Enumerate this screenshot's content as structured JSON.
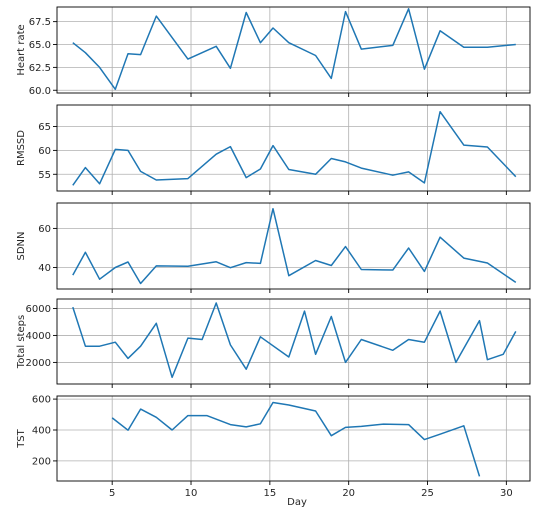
{
  "chart_data": {
    "type": "line",
    "xlabel": "Day",
    "xlim": [
      1.5,
      31.5
    ],
    "xticks": [
      5,
      10,
      15,
      20,
      25,
      30
    ],
    "line_color": "#1f77b4",
    "grid": true,
    "charts": [
      {
        "ylabel": "Heart rate",
        "ylim": [
          59.7,
          69.1
        ],
        "yticks": [
          60.0,
          62.5,
          65.0,
          67.5
        ],
        "ytick_labels": [
          "60.0",
          "62.5",
          "65.0",
          "67.5"
        ],
        "x": [
          2.5,
          3.3,
          4.2,
          5.2,
          6.0,
          6.8,
          7.8,
          9.8,
          11.6,
          12.5,
          13.5,
          14.4,
          15.2,
          16.2,
          17.9,
          18.9,
          19.8,
          20.8,
          22.8,
          23.8,
          24.8,
          25.8,
          27.3,
          28.8,
          30.6
        ],
        "values": [
          65.2,
          64.1,
          62.5,
          60.1,
          64.0,
          63.9,
          68.1,
          63.4,
          64.8,
          62.4,
          68.5,
          65.2,
          66.8,
          65.2,
          63.8,
          61.3,
          68.6,
          64.5,
          64.9,
          68.9,
          62.3,
          66.5,
          64.7,
          64.7,
          65.0
        ]
      },
      {
        "ylabel": "RMSSD",
        "ylim": [
          51.5,
          69.5
        ],
        "yticks": [
          55,
          60,
          65
        ],
        "ytick_labels": [
          "55",
          "60",
          "65"
        ],
        "x": [
          2.5,
          3.3,
          4.2,
          5.2,
          6.0,
          6.8,
          7.8,
          9.8,
          11.6,
          12.5,
          13.5,
          14.4,
          15.2,
          16.2,
          17.9,
          18.9,
          19.8,
          20.8,
          22.8,
          23.8,
          24.8,
          25.8,
          27.3,
          28.8,
          30.6
        ],
        "values": [
          52.7,
          56.4,
          53.0,
          60.2,
          60.0,
          55.6,
          53.8,
          54.1,
          59.2,
          60.8,
          54.3,
          56.1,
          61.0,
          56.0,
          55.0,
          58.3,
          57.6,
          56.3,
          54.8,
          55.5,
          53.2,
          68.1,
          61.1,
          60.7,
          54.5
        ]
      },
      {
        "ylabel": "SDNN",
        "ylim": [
          29,
          73
        ],
        "yticks": [
          40,
          60
        ],
        "ytick_labels": [
          "40",
          "60"
        ],
        "x": [
          2.5,
          3.3,
          4.2,
          5.2,
          6.0,
          6.8,
          7.8,
          9.8,
          11.6,
          12.5,
          13.5,
          14.4,
          15.2,
          16.2,
          17.9,
          18.9,
          19.8,
          20.8,
          22.8,
          23.8,
          24.8,
          25.8,
          27.3,
          28.8,
          30.6
        ],
        "values": [
          36.1,
          47.8,
          34.0,
          40.0,
          42.8,
          31.8,
          40.8,
          40.6,
          42.9,
          39.9,
          42.5,
          42.1,
          70.1,
          35.8,
          43.6,
          41.0,
          50.7,
          39.0,
          38.7,
          50.0,
          38.0,
          55.5,
          44.8,
          42.3,
          32.4
        ]
      },
      {
        "ylabel": "Total steps",
        "ylim": [
          400,
          6700
        ],
        "yticks": [
          2000,
          4000,
          6000
        ],
        "ytick_labels": [
          "2000",
          "4000",
          "6000"
        ],
        "x": [
          2.5,
          3.3,
          4.2,
          5.2,
          6.0,
          6.8,
          7.8,
          8.8,
          9.8,
          10.7,
          11.6,
          12.5,
          13.5,
          14.4,
          16.2,
          17.2,
          17.9,
          18.9,
          19.8,
          20.8,
          22.8,
          23.8,
          24.8,
          25.8,
          26.8,
          28.3,
          28.8,
          29.8,
          30.6
        ],
        "values": [
          6100,
          3200,
          3200,
          3500,
          2300,
          3200,
          4900,
          900,
          3800,
          3700,
          6400,
          3300,
          1500,
          3900,
          2400,
          5800,
          2600,
          5400,
          2000,
          3700,
          2900,
          3700,
          3500,
          5800,
          2000,
          5100,
          2200,
          2600,
          4300
        ]
      },
      {
        "ylabel": "TST",
        "ylim": [
          70,
          620
        ],
        "yticks": [
          200,
          400,
          600
        ],
        "ytick_labels": [
          "200",
          "400",
          "600"
        ],
        "x": [
          5.0,
          6.0,
          6.8,
          7.8,
          8.8,
          9.8,
          11.0,
          12.5,
          13.5,
          14.4,
          15.2,
          16.2,
          17.9,
          18.9,
          19.8,
          20.8,
          22.2,
          23.8,
          24.8,
          25.8,
          27.3,
          28.3
        ],
        "values": [
          478,
          399,
          535,
          482,
          400,
          493,
          493,
          435,
          420,
          440,
          578,
          562,
          523,
          363,
          417,
          423,
          438,
          435,
          338,
          373,
          427,
          100
        ]
      }
    ]
  }
}
